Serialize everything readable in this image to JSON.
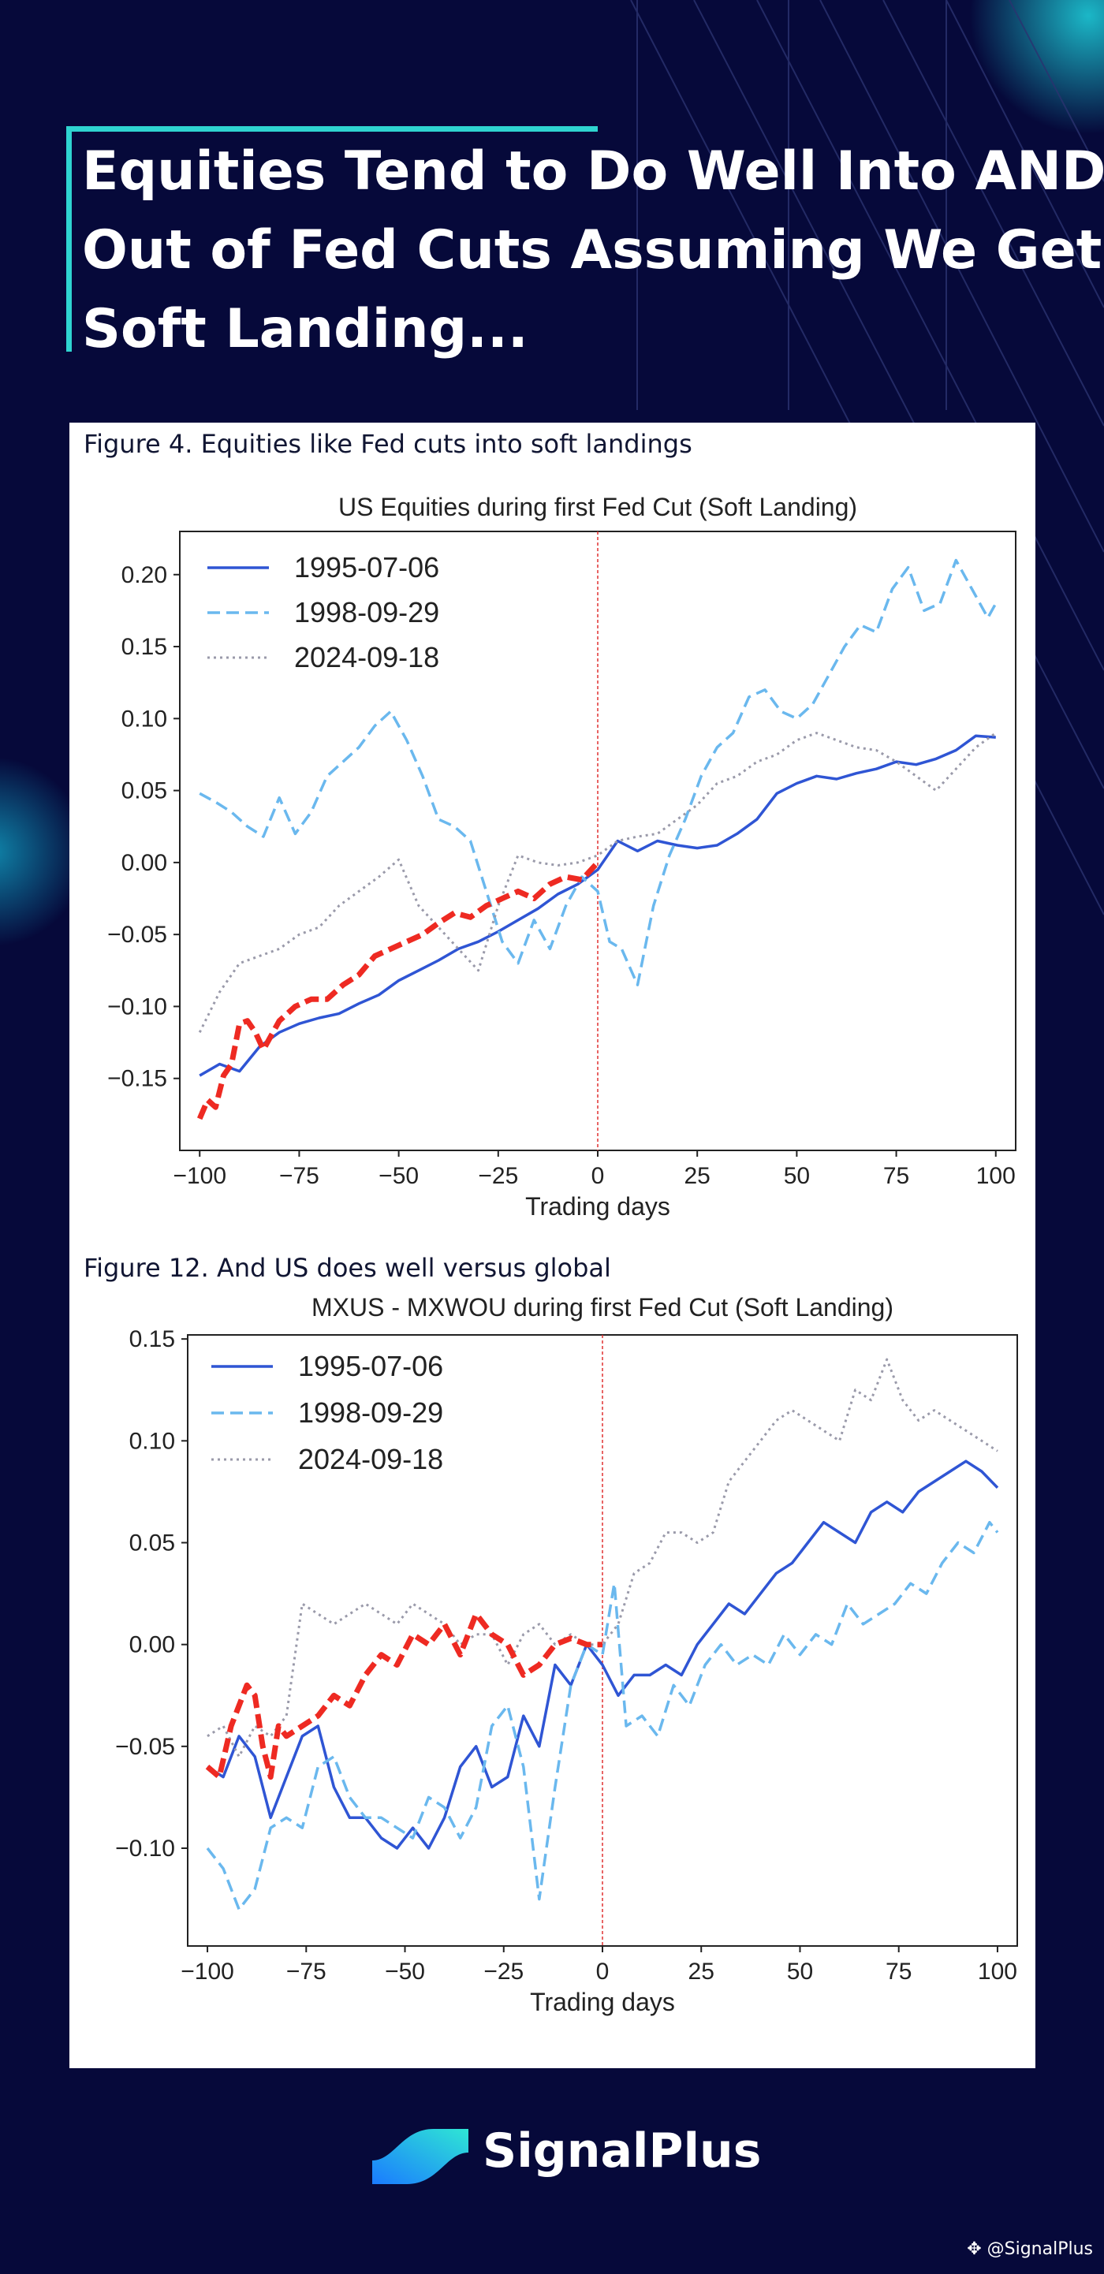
{
  "headline": {
    "lines": [
      "Equities Tend to Do Well Into AND",
      "Out of Fed Cuts Assuming We Get a",
      "Soft Landing..."
    ]
  },
  "figures": [
    {
      "caption": "Figure 4. Equities like Fed cuts into soft landings"
    },
    {
      "caption": "Figure 12. And US does well versus global"
    }
  ],
  "brand": {
    "name": "SignalPlus",
    "icon": "signalplus-logo-icon"
  },
  "handle": "@SignalPlus",
  "colors": {
    "background": "#06093a",
    "accent": "#2fd4d0",
    "s1995": "#2f55d4",
    "s1998": "#6ab8ee",
    "s2024": "#9a9aaa",
    "highlight": "#ee2a22",
    "vline": "#e03030"
  },
  "chart_data": [
    {
      "type": "line",
      "title": "US Equities during first Fed Cut (Soft Landing)",
      "xlabel": "Trading days",
      "ylabel": "",
      "xlim": [
        -105,
        105
      ],
      "ylim": [
        -0.2,
        0.23
      ],
      "xticks": [
        -100,
        -75,
        -50,
        -25,
        0,
        25,
        50,
        75,
        100
      ],
      "xtick_labels": [
        "−100",
        "−75",
        "−50",
        "−25",
        "0",
        "25",
        "50",
        "75",
        "100"
      ],
      "yticks": [
        -0.15,
        -0.1,
        -0.05,
        0.0,
        0.05,
        0.1,
        0.15,
        0.2
      ],
      "ytick_labels": [
        "−0.15",
        "−0.10",
        "−0.05",
        "0.00",
        "0.05",
        "0.10",
        "0.15",
        "0.20"
      ],
      "legend": [
        "1995-07-06",
        "1998-09-29",
        "2024-09-18"
      ],
      "legend_position": "top-left",
      "vline_x": 0,
      "series": [
        {
          "name": "1995-07-06",
          "style": "solid",
          "color": "#2f55d4",
          "x": [
            -100,
            -95,
            -90,
            -85,
            -80,
            -75,
            -70,
            -65,
            -60,
            -55,
            -50,
            -45,
            -40,
            -35,
            -30,
            -25,
            -20,
            -15,
            -10,
            -5,
            0,
            5,
            10,
            15,
            20,
            25,
            30,
            35,
            40,
            45,
            50,
            55,
            60,
            65,
            70,
            75,
            80,
            85,
            90,
            95,
            100
          ],
          "y": [
            -0.148,
            -0.14,
            -0.145,
            -0.128,
            -0.118,
            -0.112,
            -0.108,
            -0.105,
            -0.098,
            -0.092,
            -0.082,
            -0.075,
            -0.068,
            -0.06,
            -0.055,
            -0.048,
            -0.04,
            -0.032,
            -0.022,
            -0.015,
            -0.005,
            0.015,
            0.008,
            0.015,
            0.012,
            0.01,
            0.012,
            0.02,
            0.03,
            0.048,
            0.055,
            0.06,
            0.058,
            0.062,
            0.065,
            0.07,
            0.068,
            0.072,
            0.078,
            0.088,
            0.087
          ]
        },
        {
          "name": "1998-09-29",
          "style": "dashed",
          "color": "#6ab8ee",
          "x": [
            -100,
            -96,
            -92,
            -88,
            -84,
            -80,
            -76,
            -72,
            -68,
            -64,
            -60,
            -56,
            -52,
            -48,
            -44,
            -40,
            -36,
            -32,
            -28,
            -24,
            -20,
            -16,
            -12,
            -8,
            -4,
            0,
            3,
            6,
            10,
            14,
            18,
            22,
            26,
            30,
            34,
            38,
            42,
            46,
            50,
            54,
            58,
            62,
            66,
            70,
            74,
            78,
            82,
            86,
            90,
            94,
            98,
            100
          ],
          "y": [
            0.048,
            0.042,
            0.035,
            0.025,
            0.018,
            0.045,
            0.02,
            0.035,
            0.06,
            0.07,
            0.08,
            0.095,
            0.105,
            0.085,
            0.06,
            0.03,
            0.025,
            0.015,
            -0.02,
            -0.055,
            -0.07,
            -0.04,
            -0.06,
            -0.03,
            -0.01,
            -0.02,
            -0.055,
            -0.06,
            -0.085,
            -0.03,
            0.005,
            0.03,
            0.06,
            0.08,
            0.09,
            0.115,
            0.12,
            0.105,
            0.1,
            0.11,
            0.13,
            0.15,
            0.165,
            0.16,
            0.19,
            0.205,
            0.175,
            0.18,
            0.21,
            0.19,
            0.17,
            0.18
          ]
        },
        {
          "name": "2024-09-18",
          "style": "dotted",
          "color": "#9a9aaa",
          "x": [
            -100,
            -95,
            -90,
            -85,
            -80,
            -75,
            -70,
            -65,
            -60,
            -55,
            -50,
            -45,
            -40,
            -35,
            -30,
            -25,
            -20,
            -15,
            -10,
            -5,
            0,
            5,
            10,
            15,
            20,
            25,
            30,
            35,
            40,
            45,
            50,
            55,
            60,
            65,
            70,
            75,
            80,
            85,
            90,
            95,
            100
          ],
          "y": [
            -0.118,
            -0.09,
            -0.07,
            -0.065,
            -0.06,
            -0.05,
            -0.045,
            -0.03,
            -0.02,
            -0.01,
            0.002,
            -0.03,
            -0.045,
            -0.06,
            -0.075,
            -0.03,
            0.005,
            0.0,
            -0.002,
            0.0,
            0.005,
            0.015,
            0.018,
            0.02,
            0.03,
            0.04,
            0.055,
            0.06,
            0.07,
            0.075,
            0.085,
            0.09,
            0.085,
            0.08,
            0.078,
            0.07,
            0.06,
            0.05,
            0.065,
            0.08,
            0.09
          ]
        },
        {
          "name": "",
          "style": "dashed-bold",
          "color": "#ee2a22",
          "x": [
            -100,
            -98,
            -96,
            -94,
            -92,
            -90,
            -88,
            -86,
            -84,
            -80,
            -76,
            -72,
            -68,
            -64,
            -60,
            -56,
            -52,
            -48,
            -44,
            -40,
            -36,
            -32,
            -28,
            -24,
            -20,
            -16,
            -12,
            -8,
            -4,
            0
          ],
          "y": [
            -0.178,
            -0.165,
            -0.17,
            -0.148,
            -0.14,
            -0.112,
            -0.11,
            -0.118,
            -0.13,
            -0.11,
            -0.1,
            -0.095,
            -0.095,
            -0.085,
            -0.078,
            -0.065,
            -0.06,
            -0.055,
            -0.05,
            -0.042,
            -0.035,
            -0.038,
            -0.03,
            -0.025,
            -0.02,
            -0.025,
            -0.015,
            -0.01,
            -0.012,
            0.0
          ]
        }
      ]
    },
    {
      "type": "line",
      "title": "MXUS - MXWOU during first Fed Cut (Soft Landing)",
      "xlabel": "Trading days",
      "ylabel": "",
      "xlim": [
        -105,
        105
      ],
      "ylim": [
        -0.148,
        0.152
      ],
      "xticks": [
        -100,
        -75,
        -50,
        -25,
        0,
        25,
        50,
        75,
        100
      ],
      "xtick_labels": [
        "−100",
        "−75",
        "−50",
        "−25",
        "0",
        "25",
        "50",
        "75",
        "100"
      ],
      "yticks": [
        -0.1,
        -0.05,
        0.0,
        0.05,
        0.1,
        0.15
      ],
      "ytick_labels": [
        "−0.10",
        "−0.05",
        "0.00",
        "0.05",
        "0.10",
        "0.15"
      ],
      "legend": [
        "1995-07-06",
        "1998-09-29",
        "2024-09-18"
      ],
      "legend_position": "top-left",
      "vline_x": 0,
      "series": [
        {
          "name": "1995-07-06",
          "style": "solid",
          "color": "#2f55d4",
          "x": [
            -100,
            -96,
            -92,
            -88,
            -84,
            -80,
            -76,
            -72,
            -68,
            -64,
            -60,
            -56,
            -52,
            -48,
            -44,
            -40,
            -36,
            -32,
            -28,
            -24,
            -20,
            -16,
            -12,
            -8,
            -4,
            0,
            4,
            8,
            12,
            16,
            20,
            24,
            28,
            32,
            36,
            40,
            44,
            48,
            52,
            56,
            60,
            64,
            68,
            72,
            76,
            80,
            84,
            88,
            92,
            96,
            100
          ],
          "y": [
            -0.06,
            -0.065,
            -0.045,
            -0.055,
            -0.085,
            -0.065,
            -0.045,
            -0.04,
            -0.07,
            -0.085,
            -0.085,
            -0.095,
            -0.1,
            -0.09,
            -0.1,
            -0.085,
            -0.06,
            -0.05,
            -0.07,
            -0.065,
            -0.035,
            -0.05,
            -0.01,
            -0.02,
            0.0,
            -0.01,
            -0.025,
            -0.015,
            -0.015,
            -0.01,
            -0.015,
            0.0,
            0.01,
            0.02,
            0.015,
            0.025,
            0.035,
            0.04,
            0.05,
            0.06,
            0.055,
            0.05,
            0.065,
            0.07,
            0.065,
            0.075,
            0.08,
            0.085,
            0.09,
            0.085,
            0.077
          ]
        },
        {
          "name": "1998-09-29",
          "style": "dashed",
          "color": "#6ab8ee",
          "x": [
            -100,
            -96,
            -92,
            -88,
            -84,
            -80,
            -76,
            -72,
            -68,
            -64,
            -60,
            -56,
            -52,
            -48,
            -44,
            -40,
            -36,
            -32,
            -28,
            -24,
            -20,
            -16,
            -12,
            -8,
            -4,
            0,
            3,
            6,
            10,
            14,
            18,
            22,
            26,
            30,
            34,
            38,
            42,
            46,
            50,
            54,
            58,
            62,
            66,
            70,
            74,
            78,
            82,
            86,
            90,
            94,
            98,
            100
          ],
          "y": [
            -0.1,
            -0.11,
            -0.13,
            -0.12,
            -0.09,
            -0.085,
            -0.09,
            -0.06,
            -0.055,
            -0.075,
            -0.085,
            -0.085,
            -0.09,
            -0.095,
            -0.075,
            -0.08,
            -0.095,
            -0.08,
            -0.04,
            -0.03,
            -0.06,
            -0.125,
            -0.07,
            -0.02,
            0.0,
            -0.005,
            0.03,
            -0.04,
            -0.035,
            -0.045,
            -0.02,
            -0.03,
            -0.01,
            0.0,
            -0.01,
            -0.005,
            -0.01,
            0.005,
            -0.005,
            0.005,
            0.0,
            0.02,
            0.01,
            0.015,
            0.02,
            0.03,
            0.025,
            0.04,
            0.05,
            0.045,
            0.06,
            0.055
          ]
        },
        {
          "name": "2024-09-18",
          "style": "dotted",
          "color": "#9a9aaa",
          "x": [
            -100,
            -96,
            -92,
            -88,
            -84,
            -80,
            -76,
            -72,
            -68,
            -64,
            -60,
            -56,
            -52,
            -48,
            -44,
            -40,
            -36,
            -32,
            -28,
            -24,
            -20,
            -16,
            -12,
            -8,
            -4,
            0,
            4,
            8,
            12,
            16,
            20,
            24,
            28,
            32,
            36,
            40,
            44,
            48,
            52,
            56,
            60,
            64,
            68,
            72,
            76,
            80,
            84,
            88,
            92,
            96,
            100
          ],
          "y": [
            -0.045,
            -0.04,
            -0.055,
            -0.04,
            -0.045,
            -0.035,
            0.02,
            0.015,
            0.01,
            0.015,
            0.02,
            0.015,
            0.01,
            0.02,
            0.015,
            0.01,
            0.0,
            0.005,
            0.005,
            -0.01,
            0.005,
            0.01,
            0.0,
            0.005,
            0.0,
            0.0,
            0.01,
            0.035,
            0.04,
            0.055,
            0.055,
            0.05,
            0.055,
            0.08,
            0.09,
            0.1,
            0.11,
            0.115,
            0.11,
            0.105,
            0.1,
            0.125,
            0.12,
            0.14,
            0.12,
            0.11,
            0.115,
            0.11,
            0.105,
            0.1,
            0.095
          ]
        },
        {
          "name": "",
          "style": "dashed-bold",
          "color": "#ee2a22",
          "x": [
            -100,
            -97,
            -94,
            -92,
            -90,
            -88,
            -86,
            -84,
            -82,
            -80,
            -76,
            -72,
            -68,
            -64,
            -60,
            -56,
            -52,
            -48,
            -44,
            -40,
            -36,
            -32,
            -28,
            -24,
            -20,
            -16,
            -12,
            -8,
            -4,
            0
          ],
          "y": [
            -0.06,
            -0.065,
            -0.04,
            -0.03,
            -0.02,
            -0.025,
            -0.05,
            -0.065,
            -0.04,
            -0.045,
            -0.04,
            -0.035,
            -0.025,
            -0.03,
            -0.015,
            -0.005,
            -0.01,
            0.005,
            0.0,
            0.01,
            -0.005,
            0.015,
            0.005,
            0.0,
            -0.015,
            -0.01,
            0.0,
            0.003,
            0.0,
            0.0
          ]
        }
      ]
    }
  ]
}
